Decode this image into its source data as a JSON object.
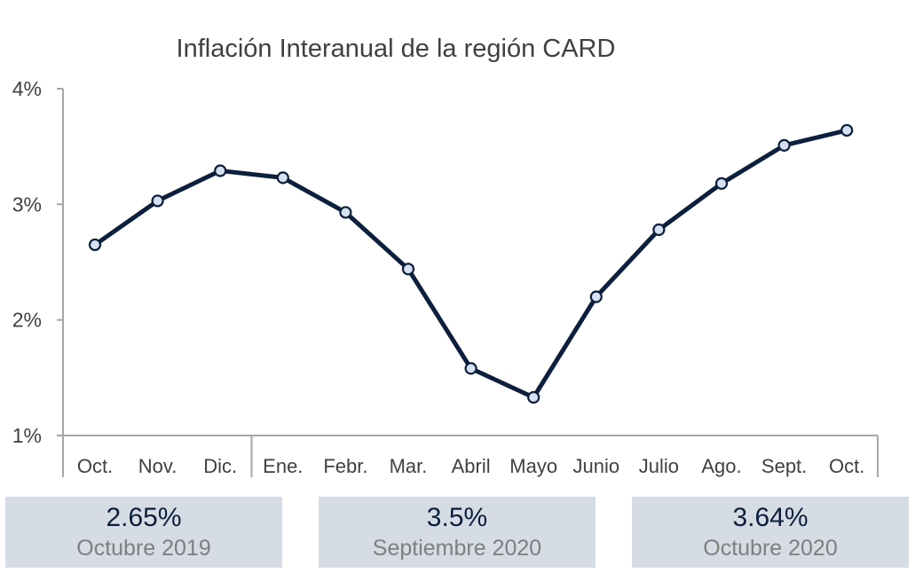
{
  "chart_data": {
    "type": "line",
    "title": "Inflación Interanual de la región CARD",
    "xlabel": "",
    "ylabel": "",
    "categories": [
      "Oct.",
      "Nov.",
      "Dic.",
      "Ene.",
      "Febr.",
      "Mar.",
      "Abril",
      "Mayo",
      "Junio",
      "Julio",
      "Ago.",
      "Sept.",
      "Oct."
    ],
    "series": [
      {
        "values": [
          2.65,
          3.03,
          3.29,
          3.23,
          2.93,
          2.44,
          1.58,
          1.33,
          2.2,
          2.78,
          3.18,
          3.51,
          3.64
        ]
      }
    ],
    "ylim": [
      1,
      4
    ],
    "yticks": [
      1,
      2,
      3,
      4
    ],
    "ytick_labels": [
      "1%",
      "2%",
      "3%",
      "4%"
    ],
    "grid": false,
    "legend": "none",
    "line_color": "#0c1f3d",
    "marker_fill": "#d6e0f0"
  },
  "stats": [
    {
      "value": "2.65%",
      "label": "Octubre 2019"
    },
    {
      "value": "3.5%",
      "label": "Septiembre 2020"
    },
    {
      "value": "3.64%",
      "label": "Octubre 2020"
    }
  ]
}
